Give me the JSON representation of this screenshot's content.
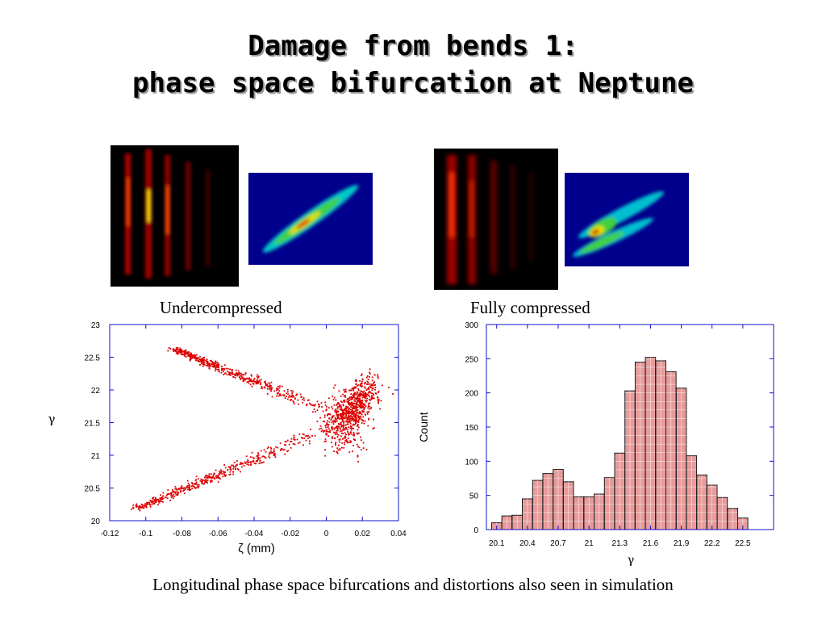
{
  "title": {
    "line1": "Damage from bends 1:",
    "line2": "phase space bifurcation at Neptune"
  },
  "panels": {
    "under_caption": "Undercompressed",
    "full_caption": "Fully compressed"
  },
  "footer": "Longitudinal phase space bifurcations and distortions also seen in simulation",
  "colors": {
    "scatter_point": "#dd0000",
    "bar_fill": "#e79b9b",
    "bar_edge": "#222222",
    "axis_frame": "#1010c8",
    "thermal_bg": "#000000",
    "density_bg": "#00008c"
  },
  "chart_data": [
    {
      "type": "scatter",
      "title": "",
      "xlabel": "ζ (mm)",
      "ylabel": "γ",
      "xlim": [
        -0.12,
        0.04
      ],
      "ylim": [
        20,
        23
      ],
      "xticks": [
        "-0.12",
        "-0.1",
        "-0.08",
        "-0.06",
        "-0.04",
        "-0.02",
        "0",
        "0.02",
        "0.04"
      ],
      "yticks": [
        "20",
        "20.5",
        "21",
        "21.5",
        "22",
        "22.5",
        "23"
      ],
      "grid": false,
      "branches": [
        {
          "from": [
            -0.085,
            22.64
          ],
          "to": [
            0.012,
            21.55
          ],
          "spread": 0.06
        },
        {
          "from": [
            -0.105,
            20.2
          ],
          "to": [
            0.012,
            21.55
          ],
          "spread": 0.07
        },
        {
          "from": [
            0.012,
            21.55
          ],
          "to": [
            0.023,
            22.1
          ],
          "spread": 0.12
        }
      ]
    },
    {
      "type": "bar",
      "title": "",
      "xlabel": "γ",
      "ylabel": "Count",
      "xlim": [
        20.0,
        22.8
      ],
      "ylim": [
        0,
        300
      ],
      "xticks": [
        "20.1",
        "20.4",
        "20.7",
        "21",
        "21.3",
        "21.6",
        "21.9",
        "22.2",
        "22.5"
      ],
      "yticks": [
        "0",
        "50",
        "100",
        "150",
        "200",
        "250",
        "300"
      ],
      "grid": true,
      "bin_width": 0.1,
      "bin_starts": [
        20.05,
        20.15,
        20.25,
        20.35,
        20.45,
        20.55,
        20.65,
        20.75,
        20.85,
        20.95,
        21.05,
        21.15,
        21.25,
        21.35,
        21.45,
        21.55,
        21.65,
        21.75,
        21.85,
        21.95,
        22.05,
        22.15,
        22.25,
        22.35,
        22.45,
        22.55
      ],
      "values": [
        10,
        20,
        21,
        45,
        72,
        82,
        88,
        70,
        48,
        48,
        52,
        76,
        112,
        203,
        245,
        252,
        247,
        231,
        207,
        108,
        80,
        65,
        47,
        31,
        17,
        0
      ]
    }
  ]
}
